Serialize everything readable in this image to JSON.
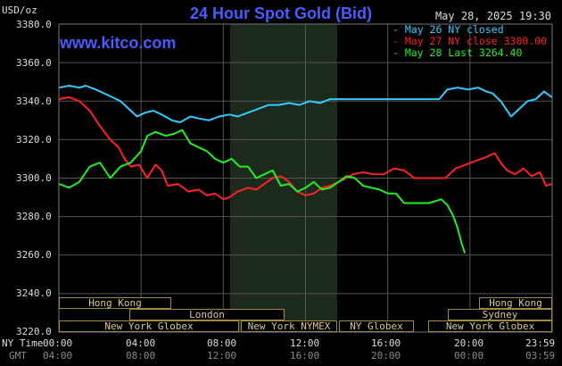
{
  "header": {
    "title": "24 Hour Spot Gold (Bid)",
    "datetime": "May 28, 2025 19:30",
    "unit": "USD/oz",
    "watermark": "www.kitco.com"
  },
  "legend": [
    {
      "text": "- May 26 NY closed",
      "color": "#33ccff"
    },
    {
      "text": "- May 27 NY close 3300.00",
      "color": "#ff2222"
    },
    {
      "text": "- May 28 Last 3264.40",
      "color": "#22ee22"
    }
  ],
  "axis": {
    "row1_label": "NY Time",
    "row2_label": "GMT",
    "ny_ticks": [
      "00:00",
      "04:00",
      "08:00",
      "12:00",
      "16:00",
      "20:00",
      "23:59"
    ],
    "gmt_ticks": [
      "04:00",
      "08:00",
      "12:00",
      "16:00",
      "20:00",
      "00:00",
      "03:59"
    ]
  },
  "markets": {
    "row1": [
      {
        "label": "Hong Kong"
      },
      {
        "label": "Hong Kong"
      }
    ],
    "row2": [
      {
        "label": "London"
      },
      {
        "label": "Sydney"
      }
    ],
    "row3": [
      {
        "label": "New York Globex"
      },
      {
        "label": "New York NYMEX"
      },
      {
        "label": "NY Globex"
      },
      {
        "label": "New York Globex"
      }
    ]
  },
  "colors": {
    "background": "#000000",
    "grid": "#555555",
    "shade": "#1c2a1c"
  },
  "chart_data": {
    "type": "line",
    "title": "24 Hour Spot Gold (Bid)",
    "xlabel": "NY Time",
    "ylabel": "USD/oz",
    "x_range_hours": [
      0,
      24
    ],
    "ylim": [
      3220,
      3380
    ],
    "yticks": [
      "3380.0",
      "3360.0",
      "3340.0",
      "3320.0",
      "3300.0",
      "3280.0",
      "3260.0",
      "3240.0",
      "3220.0"
    ],
    "series": [
      {
        "name": "May 26 NY closed",
        "color": "#33ccff",
        "x": [
          0,
          0.5,
          1,
          1.3,
          1.8,
          2.2,
          2.6,
          3.0,
          3.4,
          3.8,
          4.2,
          4.6,
          5.0,
          5.5,
          5.9,
          6.4,
          6.8,
          7.3,
          7.8,
          8.3,
          8.7,
          9.2,
          9.7,
          10.2,
          10.7,
          11.2,
          11.7,
          12.2,
          12.7,
          13.2,
          13.8,
          14.5,
          15.0,
          15.5,
          16.0,
          16.5,
          17.0,
          17.5,
          18.0,
          18.5,
          18.9,
          19.4,
          19.9,
          20.4,
          20.8,
          21.1,
          21.5,
          22.0,
          22.4,
          22.8,
          23.2,
          23.6,
          23.99
        ],
        "y": [
          3347,
          3348,
          3347,
          3348,
          3346,
          3344,
          3342,
          3340,
          3336,
          3332,
          3334,
          3335,
          3333,
          3330,
          3329,
          3332,
          3331,
          3330,
          3332,
          3333,
          3332,
          3334,
          3336,
          3338,
          3338,
          3339,
          3338,
          3340,
          3339,
          3341,
          3341,
          3341,
          3341,
          3341,
          3341,
          3341,
          3341,
          3341,
          3341,
          3341,
          3346,
          3347,
          3346,
          3347,
          3345,
          3344,
          3340,
          3332,
          3336,
          3340,
          3341,
          3345,
          3342
        ]
      },
      {
        "name": "May 27 NY close 3300.00",
        "color": "#ff2222",
        "x": [
          0,
          0.5,
          1,
          1.5,
          2.0,
          2.5,
          2.9,
          3.2,
          3.5,
          3.9,
          4.3,
          4.7,
          5.0,
          5.3,
          5.8,
          6.3,
          6.8,
          7.2,
          7.6,
          8.0,
          8.3,
          8.7,
          9.2,
          9.6,
          10.0,
          10.4,
          10.8,
          11.2,
          11.6,
          12.0,
          12.4,
          12.8,
          13.2,
          13.8,
          14.3,
          14.8,
          15.3,
          15.8,
          16.3,
          16.8,
          17.3,
          17.8,
          18.3,
          18.8,
          19.3,
          19.8,
          20.3,
          20.8,
          21.2,
          21.5,
          21.8,
          22.2,
          22.6,
          23.0,
          23.4,
          23.7,
          23.99
        ],
        "y": [
          3341,
          3342,
          3340,
          3335,
          3327,
          3320,
          3316,
          3310,
          3306,
          3307,
          3300,
          3307,
          3304,
          3296,
          3297,
          3293,
          3294,
          3291,
          3292,
          3289,
          3290,
          3293,
          3295,
          3294,
          3297,
          3300,
          3301,
          3298,
          3293,
          3291,
          3292,
          3295,
          3296,
          3299,
          3302,
          3303,
          3302,
          3302,
          3305,
          3304,
          3300,
          3300,
          3300,
          3300,
          3305,
          3307,
          3309,
          3311,
          3313,
          3308,
          3304,
          3302,
          3305,
          3301,
          3303,
          3296,
          3297
        ]
      },
      {
        "name": "May 28 Last 3264.40",
        "color": "#22ee22",
        "x": [
          0,
          0.5,
          1.0,
          1.5,
          2.0,
          2.5,
          3.0,
          3.5,
          4.0,
          4.3,
          4.7,
          5.2,
          5.6,
          6.0,
          6.4,
          6.8,
          7.2,
          7.6,
          8.0,
          8.4,
          8.8,
          9.2,
          9.6,
          10.0,
          10.4,
          10.8,
          11.2,
          11.6,
          12.0,
          12.4,
          12.8,
          13.2,
          13.6,
          14.0,
          14.4,
          14.8,
          15.2,
          15.6,
          16.0,
          16.4,
          16.8,
          17.2,
          17.6,
          18.0,
          18.3,
          18.6,
          18.9,
          19.2,
          19.4,
          19.6,
          19.75
        ],
        "y": [
          3297,
          3295,
          3298,
          3306,
          3308,
          3300,
          3306,
          3308,
          3314,
          3322,
          3324,
          3322,
          3323,
          3325,
          3318,
          3316,
          3314,
          3310,
          3308,
          3310,
          3306,
          3306,
          3300,
          3302,
          3304,
          3296,
          3297,
          3293,
          3295,
          3298,
          3294,
          3295,
          3298,
          3301,
          3300,
          3296,
          3295,
          3294,
          3292,
          3292,
          3287,
          3287,
          3287,
          3287,
          3288,
          3289,
          3286,
          3280,
          3274,
          3266,
          3261
        ]
      }
    ]
  }
}
